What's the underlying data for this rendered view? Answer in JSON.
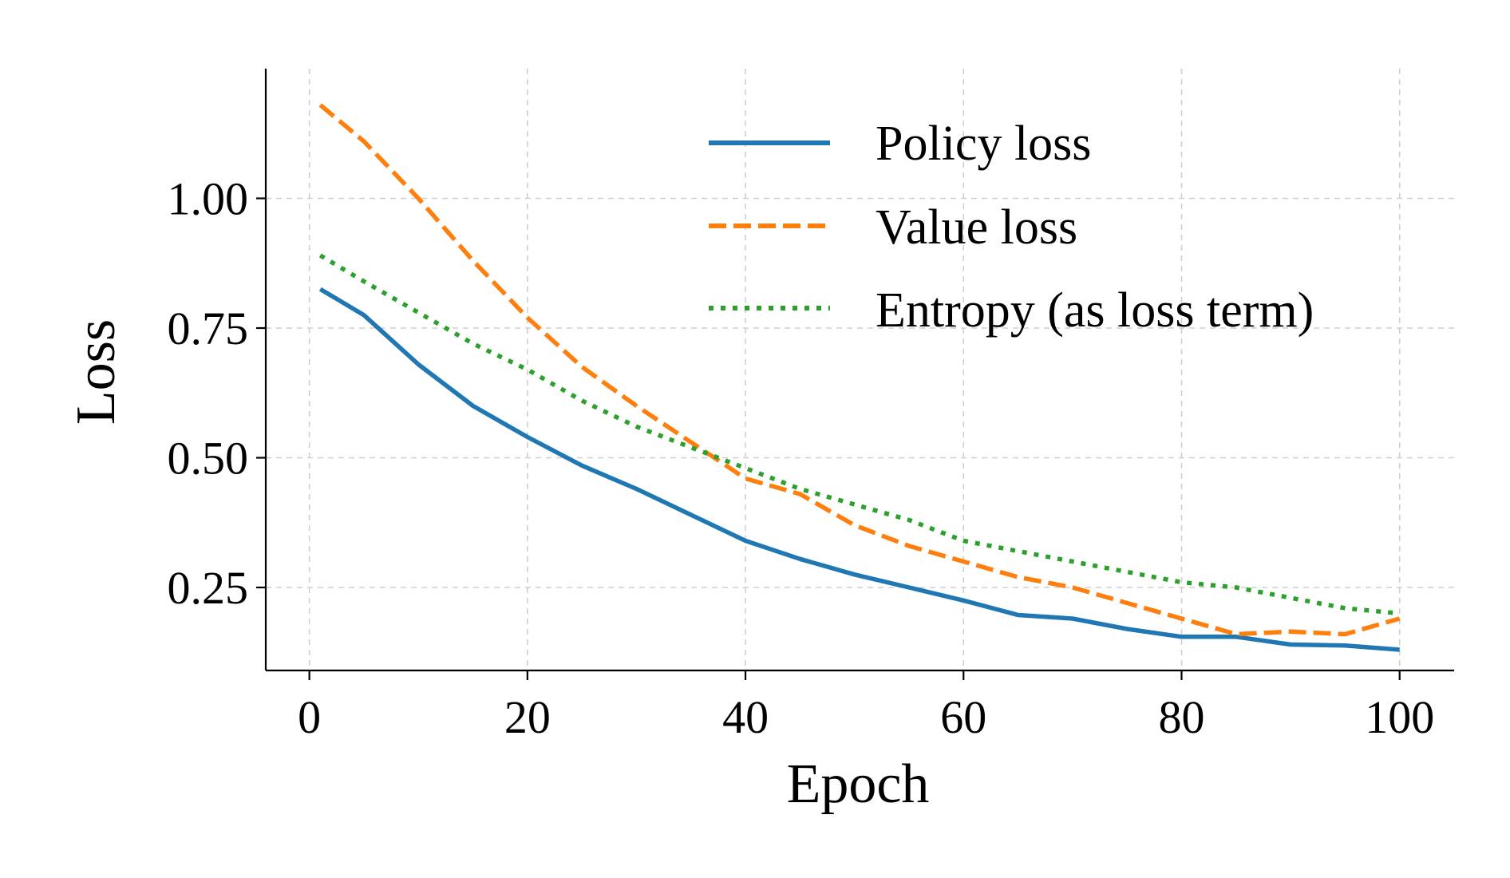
{
  "chart_data": {
    "type": "line",
    "title": "",
    "xlabel": "Epoch",
    "ylabel": "Loss",
    "xlim": [
      -4,
      105
    ],
    "ylim": [
      0.09,
      1.25
    ],
    "xticks": [
      0,
      20,
      40,
      60,
      80,
      100
    ],
    "xtick_labels": [
      "0",
      "20",
      "40",
      "60",
      "80",
      "100"
    ],
    "yticks": [
      0.25,
      0.5,
      0.75,
      1.0
    ],
    "ytick_labels": [
      "0.25",
      "0.50",
      "0.75",
      "1.00"
    ],
    "grid": true,
    "legend_position": "top-right",
    "x": [
      1,
      5,
      10,
      15,
      20,
      25,
      30,
      35,
      40,
      45,
      50,
      55,
      60,
      65,
      70,
      75,
      80,
      85,
      90,
      95,
      100
    ],
    "series": [
      {
        "name": "Policy loss",
        "color": "#1f77b4",
        "style": "solid",
        "values": [
          0.825,
          0.775,
          0.68,
          0.6,
          0.54,
          0.485,
          0.44,
          0.39,
          0.34,
          0.305,
          0.275,
          0.25,
          0.225,
          0.197,
          0.19,
          0.17,
          0.155,
          0.155,
          0.14,
          0.138,
          0.13
        ]
      },
      {
        "name": "Value loss",
        "color": "#ff7f0e",
        "style": "dashed",
        "values": [
          1.18,
          1.11,
          1.0,
          0.88,
          0.77,
          0.675,
          0.6,
          0.53,
          0.46,
          0.43,
          0.37,
          0.33,
          0.3,
          0.27,
          0.25,
          0.22,
          0.19,
          0.16,
          0.165,
          0.16,
          0.19
        ]
      },
      {
        "name": "Entropy (as loss term)",
        "color": "#2ca02c",
        "style": "dotted",
        "values": [
          0.89,
          0.84,
          0.78,
          0.72,
          0.67,
          0.61,
          0.56,
          0.52,
          0.48,
          0.44,
          0.41,
          0.38,
          0.34,
          0.32,
          0.3,
          0.28,
          0.26,
          0.25,
          0.23,
          0.21,
          0.2
        ]
      }
    ]
  }
}
